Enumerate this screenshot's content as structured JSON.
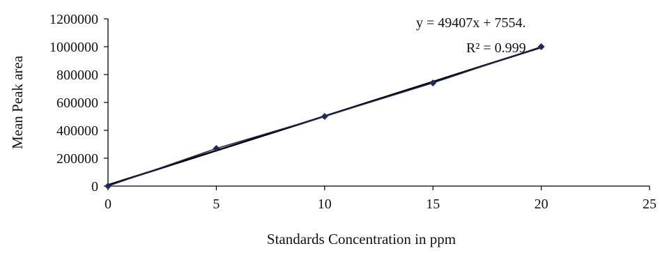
{
  "chart_data": {
    "type": "scatter",
    "title": "",
    "xlabel": "Standards Concentration in ppm",
    "ylabel": "Mean Peak area",
    "xlim": [
      0,
      25
    ],
    "ylim": [
      0,
      1200000
    ],
    "x_ticks": [
      "0",
      "5",
      "10",
      "15",
      "20",
      "25"
    ],
    "y_ticks": [
      "0",
      "200000",
      "400000",
      "600000",
      "800000",
      "1000000",
      "1200000"
    ],
    "grid": false,
    "legend": "none",
    "series": [
      {
        "x": [
          0,
          5,
          10,
          15,
          20
        ],
        "y": [
          0,
          270000,
          500000,
          740000,
          1000000
        ],
        "marker": "diamond",
        "color": "#1f2a5a"
      }
    ],
    "trendline": {
      "type": "linear",
      "slope": 49407,
      "intercept": 7554,
      "x_range": [
        0,
        20
      ],
      "color": "#000000"
    },
    "annotations": [
      {
        "text": "y = 49407x + 7554."
      },
      {
        "text": "R² = 0.999"
      }
    ]
  }
}
